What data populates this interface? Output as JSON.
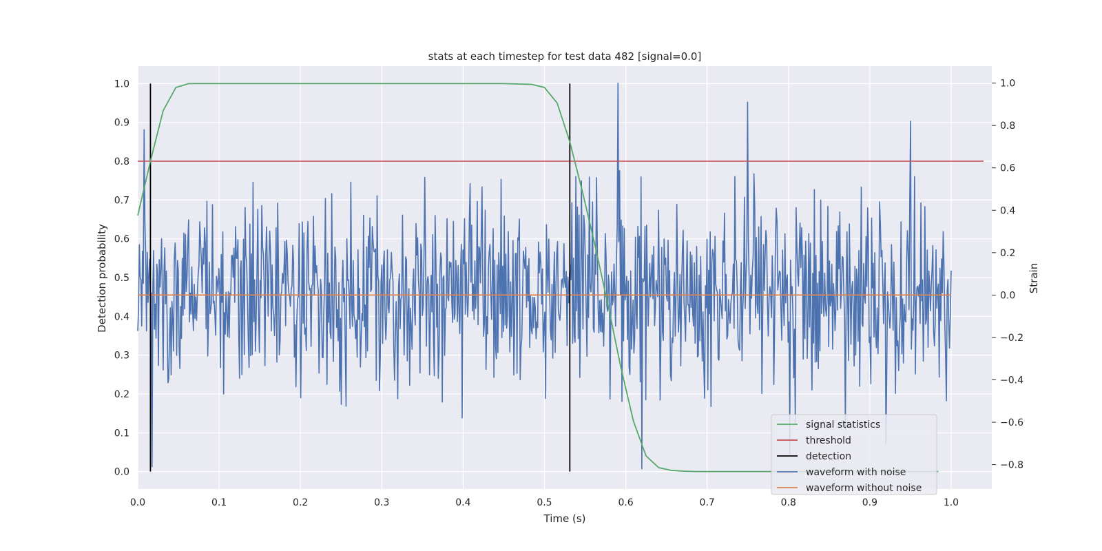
{
  "chart_data": {
    "type": "line",
    "title": "stats at each timestep for test data 482 [signal=0.0]",
    "xlabel": "Time (s)",
    "ylabel": "Detection probability",
    "y2label": "Strain",
    "xlim": [
      0.0,
      1.05
    ],
    "ylim": [
      -0.045,
      1.045
    ],
    "y2lim": [
      -0.915,
      1.08
    ],
    "grid": true,
    "legend_position": "lower-right",
    "x_ticks": [
      "0.0",
      "0.1",
      "0.2",
      "0.3",
      "0.4",
      "0.5",
      "0.6",
      "0.7",
      "0.8",
      "0.9",
      "1.0"
    ],
    "y_ticks": [
      "0.0",
      "0.1",
      "0.2",
      "0.3",
      "0.4",
      "0.5",
      "0.6",
      "0.7",
      "0.8",
      "0.9",
      "1.0"
    ],
    "y2_ticks": [
      "−0.8",
      "−0.6",
      "−0.4",
      "−0.2",
      "0.0",
      "0.2",
      "0.4",
      "0.6",
      "0.8",
      "1.0"
    ],
    "colors": {
      "background": "#eaeaf2",
      "grid": "#ffffff",
      "signal_statistics": "#55a868",
      "threshold": "#c44e52",
      "detection": "#000000",
      "waveform_with_noise": "#4c72b0",
      "waveform_without_noise": "#dd8452"
    },
    "series": [
      {
        "name": "signal statistics",
        "axis": "left",
        "x": [
          0.0,
          0.0156,
          0.0312,
          0.0469,
          0.0625,
          0.0781,
          0.1,
          0.2,
          0.3,
          0.4,
          0.45,
          0.4844,
          0.5,
          0.5156,
          0.5312,
          0.5469,
          0.5625,
          0.5781,
          0.5938,
          0.6094,
          0.625,
          0.6406,
          0.6562,
          0.6719,
          0.6875,
          0.7,
          0.8,
          0.9,
          0.9844
        ],
        "y": [
          0.66,
          0.8,
          0.93,
          0.99,
          1.0,
          1.0,
          1.0,
          1.0,
          1.0,
          1.0,
          1.0,
          0.998,
          0.99,
          0.95,
          0.85,
          0.72,
          0.58,
          0.43,
          0.27,
          0.13,
          0.04,
          0.01,
          0.003,
          0.001,
          0.0,
          0.0,
          0.0,
          0.0,
          0.0
        ]
      },
      {
        "name": "threshold",
        "axis": "left",
        "x": [
          0.0,
          1.04
        ],
        "y": [
          0.8,
          0.8
        ]
      },
      {
        "name": "detection",
        "axis": "left",
        "x_positions": [
          0.0156,
          0.5312
        ],
        "y_range": [
          0.0,
          1.0
        ]
      },
      {
        "name": "waveform with noise",
        "axis": "right",
        "x_range": [
          0.0,
          1.0
        ],
        "points": 1024,
        "amplitude_std": 0.22,
        "peaks": [
          {
            "x": 0.59,
            "y": 1.0
          },
          {
            "x": 0.75,
            "y": 0.91
          },
          {
            "x": 0.008,
            "y": 0.78
          },
          {
            "x": 0.95,
            "y": 0.82
          },
          {
            "x": 0.62,
            "y": -0.82
          },
          {
            "x": 0.018,
            "y": -0.81
          },
          {
            "x": 0.92,
            "y": -0.7
          }
        ]
      },
      {
        "name": "waveform without noise",
        "axis": "right",
        "x": [
          0.0,
          1.0
        ],
        "y": [
          0.0,
          0.0
        ]
      }
    ]
  }
}
